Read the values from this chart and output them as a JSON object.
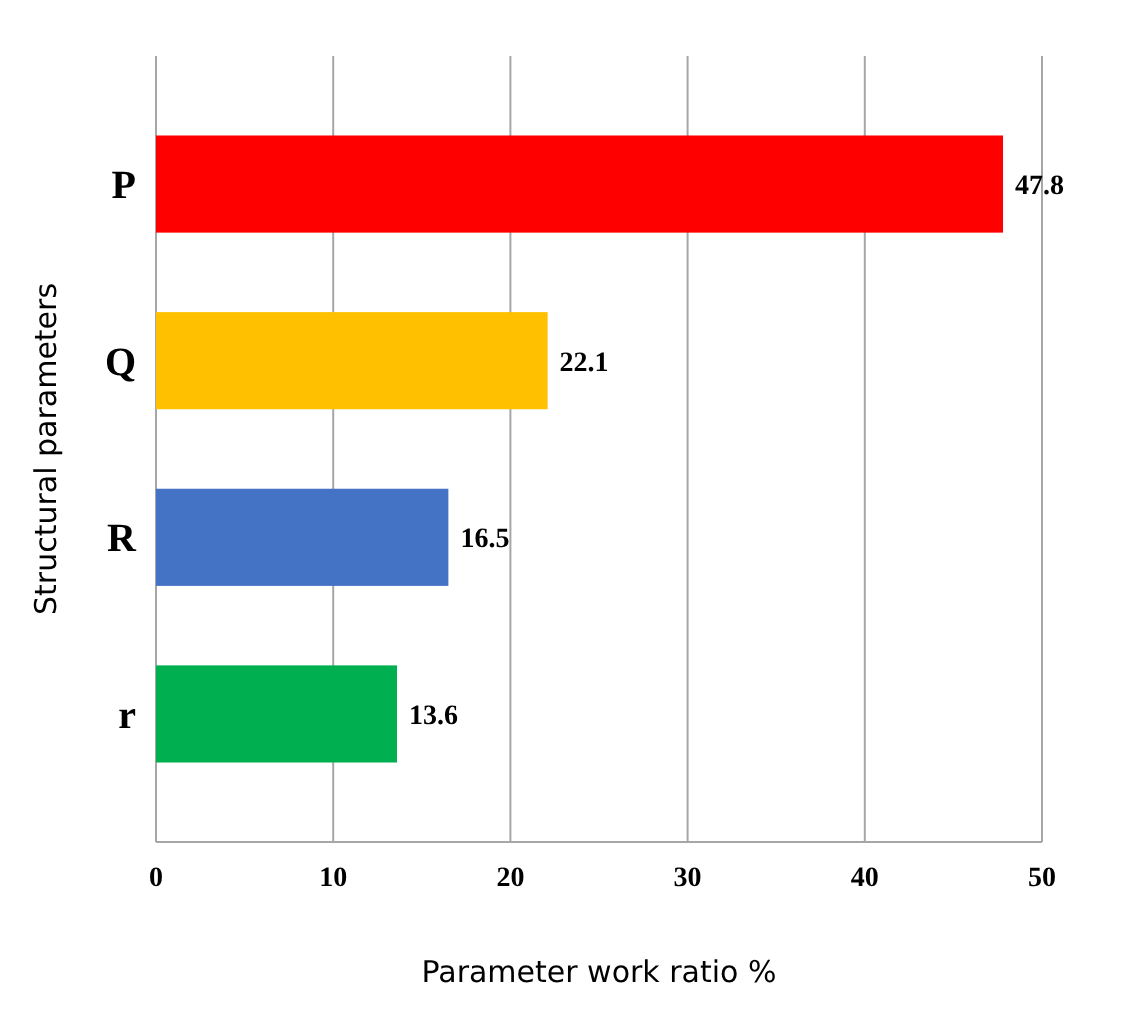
{
  "chart_data": {
    "type": "bar",
    "orientation": "horizontal",
    "categories": [
      "P",
      "Q",
      "R",
      "r"
    ],
    "values": [
      47.8,
      22.1,
      16.5,
      13.6
    ],
    "colors": [
      "#ff0000",
      "#ffc000",
      "#4472c4",
      "#00b050"
    ],
    "xlabel": "Parameter work ratio %",
    "ylabel": "Structural parameters",
    "xlim": [
      0,
      50
    ],
    "xticks": [
      0,
      10,
      20,
      30,
      40,
      50
    ],
    "grid": "x",
    "data_labels": true
  }
}
